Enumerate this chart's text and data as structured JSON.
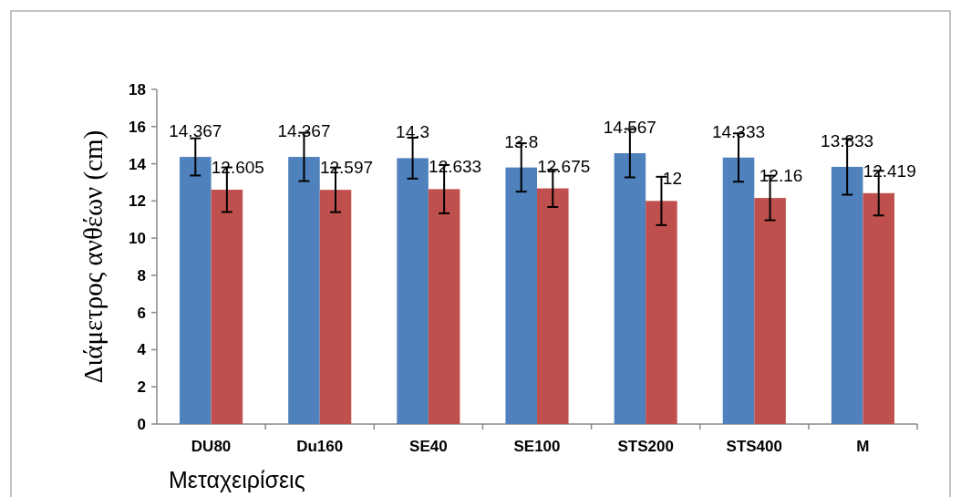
{
  "chart_data": {
    "type": "bar",
    "xlabel": "Μεταχειρίσεις",
    "ylabel": "Διάμετρος ανθέων (cm)",
    "categories": [
      "DU80",
      "Du160",
      "SE40",
      "SE100",
      "STS200",
      "STS400",
      "M"
    ],
    "series": [
      {
        "color": "#4f81bd",
        "values": [
          14.367,
          14.367,
          14.3,
          13.8,
          14.567,
          14.333,
          13.833
        ],
        "errors": [
          1.0,
          1.3,
          1.1,
          1.3,
          1.3,
          1.3,
          1.5
        ]
      },
      {
        "color": "#c0504d",
        "values": [
          12.605,
          12.597,
          12.633,
          12.675,
          12,
          12.16,
          12.419
        ],
        "errors": [
          1.2,
          1.2,
          1.3,
          1.0,
          1.3,
          1.2,
          1.2
        ]
      }
    ],
    "ylim": [
      0,
      18
    ],
    "yticks": [
      0,
      2,
      4,
      6,
      8,
      10,
      12,
      14,
      16,
      18
    ],
    "data_labels": true
  }
}
